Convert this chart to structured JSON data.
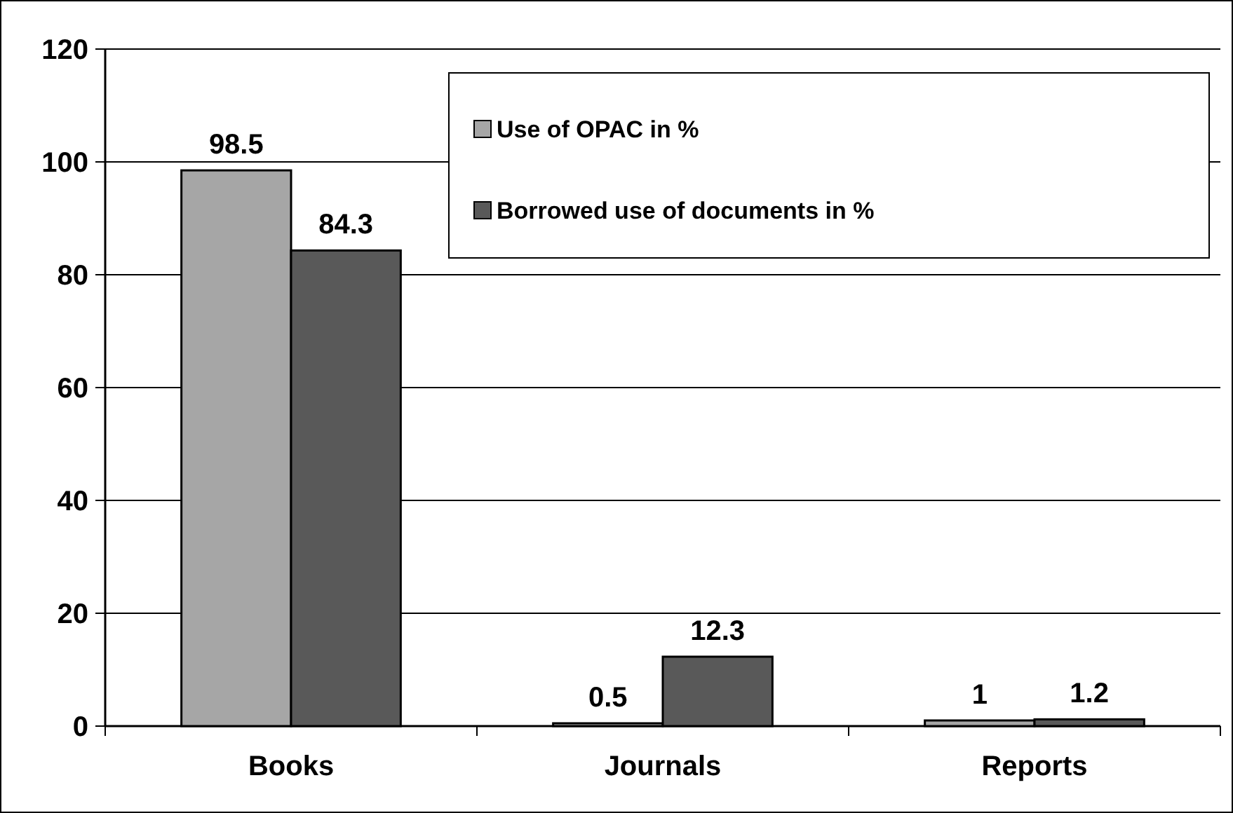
{
  "chart_data": {
    "type": "bar",
    "categories": [
      "Books",
      "Journals",
      "Reports"
    ],
    "series": [
      {
        "name": "Use of OPAC in %",
        "color": "#a6a6a6",
        "values": [
          98.5,
          0.5,
          1
        ]
      },
      {
        "name": "Borrowed use of documents in %",
        "color": "#595959",
        "values": [
          84.3,
          12.3,
          1.2
        ]
      }
    ],
    "ylim": [
      0,
      120
    ],
    "yticks": [
      0,
      20,
      40,
      60,
      80,
      100,
      120
    ],
    "grid": "y",
    "legend": "top right",
    "data_labels": true
  }
}
